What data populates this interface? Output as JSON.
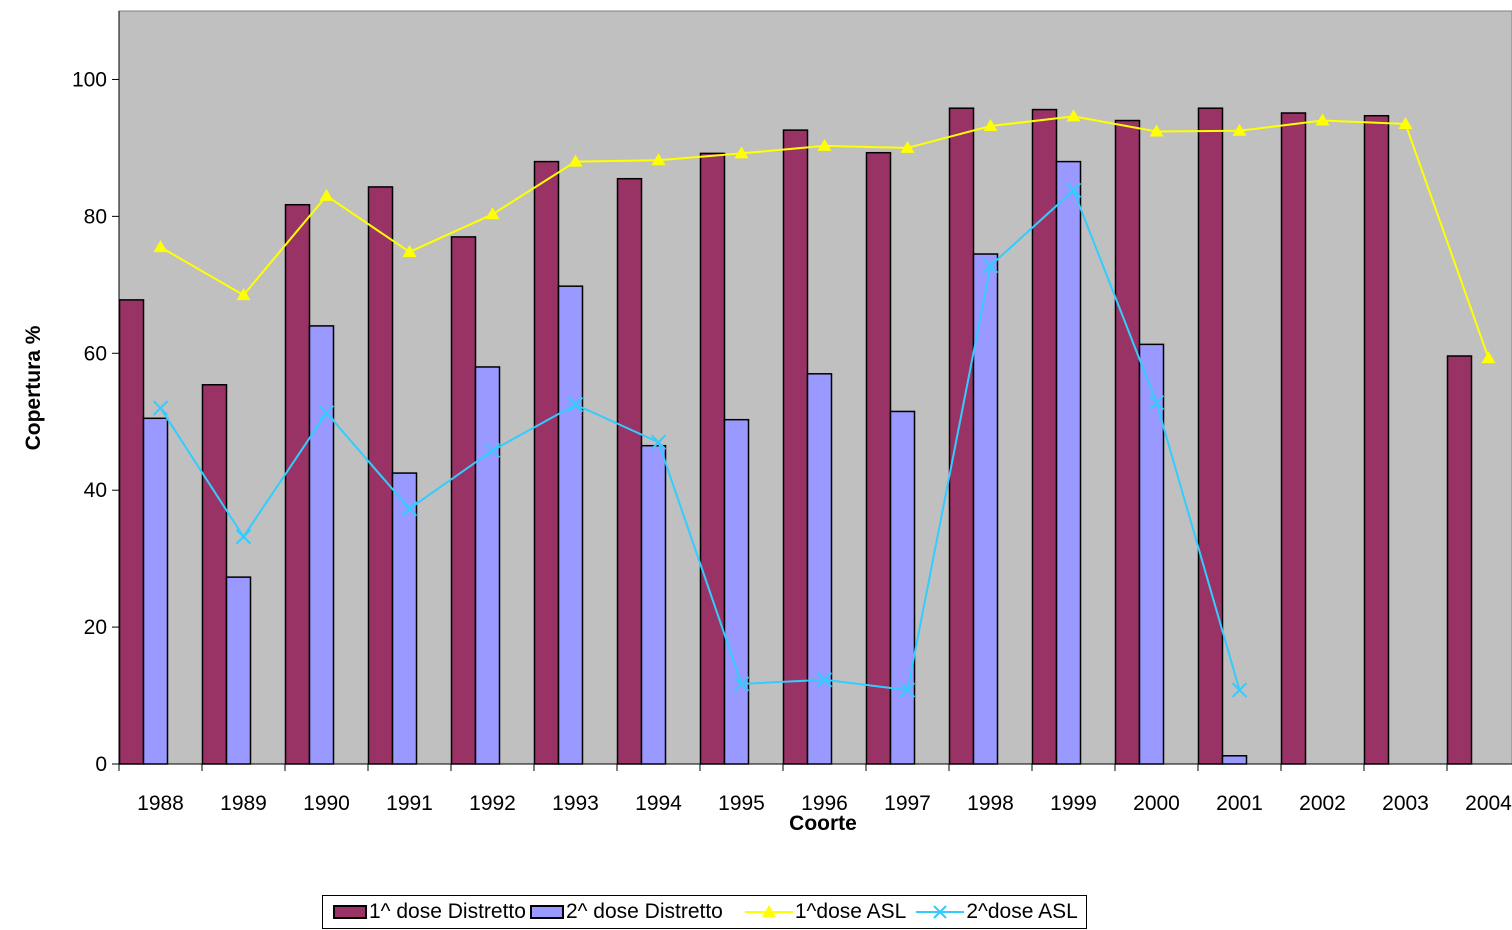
{
  "chart_data": {
    "type": "bar",
    "title": "",
    "xlabel": "Coorte",
    "ylabel": "Copertura %",
    "ylim": [
      0,
      110
    ],
    "yticks": [
      0,
      20,
      40,
      60,
      80,
      100
    ],
    "grid": false,
    "background": "#C0C0C0",
    "legend_position": "bottom",
    "categories": [
      "1988",
      "1989",
      "1990",
      "1991",
      "1992",
      "1993",
      "1994",
      "1995",
      "1996",
      "1997",
      "1998",
      "1999",
      "2000",
      "2001",
      "2002",
      "2003",
      "2004"
    ],
    "series": [
      {
        "name": "1^ dose Distretto",
        "kind": "bar",
        "color": "#993366",
        "values": [
          67.8,
          55.4,
          81.7,
          84.3,
          77.0,
          88.0,
          85.5,
          89.2,
          92.6,
          89.3,
          95.8,
          95.6,
          94.0,
          95.8,
          95.1,
          94.7,
          59.6
        ]
      },
      {
        "name": "2^ dose Distretto",
        "kind": "bar",
        "color": "#9999FF",
        "values": [
          50.5,
          27.3,
          64.0,
          42.5,
          58.0,
          69.8,
          46.5,
          50.3,
          57.0,
          51.5,
          74.5,
          88.0,
          61.3,
          1.2,
          null,
          null,
          null
        ]
      },
      {
        "name": "1^dose ASL",
        "kind": "line",
        "color": "#FFFF00",
        "marker": "triangle",
        "values": [
          75.5,
          68.5,
          83.0,
          74.8,
          80.3,
          88.0,
          88.2,
          89.2,
          90.3,
          90.0,
          93.2,
          94.6,
          92.4,
          92.5,
          94.0,
          93.5,
          59.3
        ]
      },
      {
        "name": "2^dose ASL",
        "kind": "line",
        "color": "#33CCFF",
        "marker": "x",
        "values": [
          52.0,
          33.2,
          51.3,
          37.3,
          45.8,
          52.5,
          47.0,
          11.7,
          12.3,
          10.8,
          72.8,
          83.8,
          52.8,
          10.8,
          null,
          null,
          null
        ]
      }
    ]
  }
}
